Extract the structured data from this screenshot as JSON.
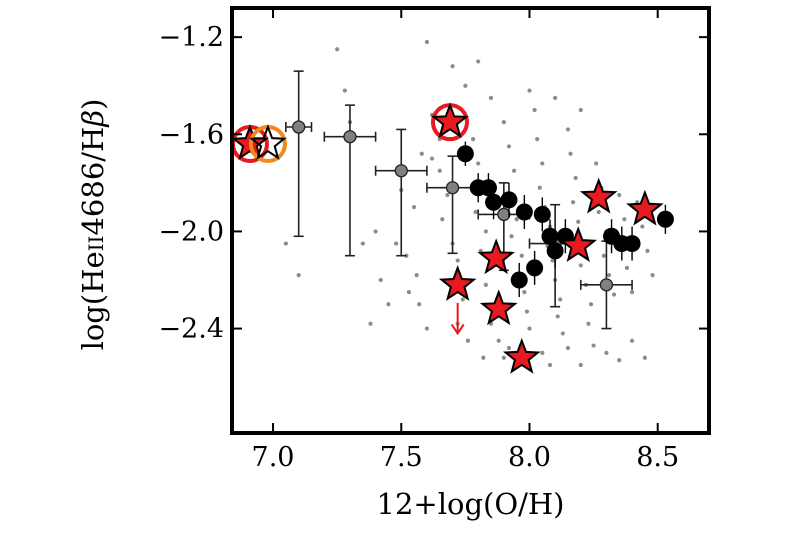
{
  "chart_data": {
    "type": "scatter",
    "xlabel": "12+log(O/H)",
    "ylabel_parts": [
      "log(He",
      "II",
      "4686/H",
      "β",
      ")"
    ],
    "xlim": [
      6.84,
      8.7
    ],
    "ylim": [
      -2.83,
      -1.08
    ],
    "xticks": [
      7.0,
      7.5,
      8.0,
      8.5
    ],
    "xtick_labels": [
      "7.0",
      "7.5",
      "8.0",
      "8.5"
    ],
    "yticks": [
      -1.2,
      -1.6,
      -2.0,
      -2.4
    ],
    "ytick_labels": [
      "−1.2",
      "−1.6",
      "−2.0",
      "−2.4"
    ],
    "colors": {
      "background_points": "#8c8c8c",
      "gray_markers": "#808080",
      "black_markers": "#000000",
      "stars": "#e8191f",
      "red_circle": "#e8191f",
      "orange_circle": "#f08a1a",
      "upper_limit_arrow": "#e8191f"
    },
    "series": [
      {
        "marker": "small-dot",
        "points": [
          [
            7.5,
            -1.83
          ],
          [
            7.55,
            -1.9
          ],
          [
            7.48,
            -2.05
          ],
          [
            7.52,
            -2.1
          ],
          [
            7.56,
            -2.18
          ],
          [
            7.53,
            -2.25
          ],
          [
            7.57,
            -2.3
          ],
          [
            7.6,
            -2.4
          ],
          [
            7.62,
            -1.7
          ],
          [
            7.65,
            -1.75
          ],
          [
            7.68,
            -1.85
          ],
          [
            7.66,
            -1.95
          ],
          [
            7.7,
            -2.05
          ],
          [
            7.72,
            -2.12
          ],
          [
            7.7,
            -2.2
          ],
          [
            7.74,
            -2.28
          ],
          [
            7.72,
            -2.38
          ],
          [
            7.76,
            -2.45
          ],
          [
            7.78,
            -1.62
          ],
          [
            7.8,
            -1.72
          ],
          [
            7.82,
            -1.8
          ],
          [
            7.79,
            -1.92
          ],
          [
            7.83,
            -2.0
          ],
          [
            7.81,
            -2.08
          ],
          [
            7.85,
            -2.15
          ],
          [
            7.83,
            -2.22
          ],
          [
            7.87,
            -2.3
          ],
          [
            7.85,
            -2.38
          ],
          [
            7.88,
            -2.45
          ],
          [
            7.9,
            -1.55
          ],
          [
            7.92,
            -1.65
          ],
          [
            7.94,
            -1.75
          ],
          [
            7.91,
            -1.85
          ],
          [
            7.95,
            -1.95
          ],
          [
            7.93,
            -2.02
          ],
          [
            7.97,
            -2.1
          ],
          [
            7.96,
            -2.18
          ],
          [
            7.98,
            -2.25
          ],
          [
            7.99,
            -2.33
          ],
          [
            8.0,
            -2.4
          ],
          [
            8.02,
            -1.5
          ],
          [
            8.03,
            -1.62
          ],
          [
            8.05,
            -1.72
          ],
          [
            8.04,
            -1.82
          ],
          [
            8.06,
            -1.9
          ],
          [
            8.08,
            -1.98
          ],
          [
            8.07,
            -2.06
          ],
          [
            8.09,
            -2.12
          ],
          [
            8.1,
            -2.2
          ],
          [
            8.12,
            -2.28
          ],
          [
            8.11,
            -2.35
          ],
          [
            8.13,
            -2.42
          ],
          [
            8.15,
            -1.58
          ],
          [
            8.16,
            -1.68
          ],
          [
            8.18,
            -1.78
          ],
          [
            8.17,
            -1.88
          ],
          [
            8.19,
            -1.96
          ],
          [
            8.21,
            -2.04
          ],
          [
            8.2,
            -2.14
          ],
          [
            8.22,
            -2.22
          ],
          [
            8.24,
            -2.3
          ],
          [
            8.23,
            -2.38
          ],
          [
            8.26,
            -1.72
          ],
          [
            8.28,
            -1.82
          ],
          [
            8.27,
            -1.92
          ],
          [
            8.3,
            -2.0
          ],
          [
            8.29,
            -2.1
          ],
          [
            8.31,
            -2.18
          ],
          [
            8.33,
            -2.26
          ],
          [
            8.35,
            -1.85
          ],
          [
            8.37,
            -1.95
          ],
          [
            8.36,
            -2.05
          ],
          [
            8.38,
            -2.15
          ],
          [
            8.4,
            -2.25
          ],
          [
            8.42,
            -1.88
          ],
          [
            8.44,
            -1.98
          ],
          [
            8.46,
            -2.08
          ],
          [
            8.48,
            -2.18
          ],
          [
            7.4,
            -2.0
          ],
          [
            7.42,
            -2.2
          ],
          [
            7.38,
            -2.38
          ],
          [
            7.45,
            -2.3
          ],
          [
            7.3,
            -1.55
          ],
          [
            7.28,
            -1.42
          ],
          [
            7.05,
            -2.05
          ],
          [
            7.1,
            -2.18
          ],
          [
            7.35,
            -2.05
          ],
          [
            7.25,
            -1.25
          ],
          [
            7.62,
            -1.52
          ],
          [
            7.75,
            -1.4
          ],
          [
            7.8,
            -1.3
          ],
          [
            7.6,
            -1.22
          ],
          [
            7.7,
            -1.32
          ],
          [
            7.82,
            -2.52
          ],
          [
            7.9,
            -2.52
          ],
          [
            8.05,
            -2.5
          ],
          [
            8.15,
            -2.48
          ],
          [
            8.2,
            -2.55
          ],
          [
            8.25,
            -2.47
          ],
          [
            8.3,
            -2.5
          ],
          [
            8.4,
            -2.45
          ],
          [
            8.45,
            -2.52
          ],
          [
            7.96,
            -2.55
          ],
          [
            8.08,
            -2.55
          ],
          [
            8.35,
            -2.53
          ],
          [
            7.92,
            -2.48
          ],
          [
            8.0,
            -1.42
          ],
          [
            8.1,
            -1.45
          ],
          [
            8.2,
            -1.5
          ],
          [
            7.85,
            -1.45
          ],
          [
            7.65,
            -1.62
          ],
          [
            7.58,
            -1.68
          ]
        ]
      },
      {
        "marker": "gray-circle-errorbars",
        "points": [
          {
            "x": 7.1,
            "y": -1.57,
            "xerr": 0.05,
            "yerr": [
              0.45,
              0.23
            ]
          },
          {
            "x": 7.3,
            "y": -1.61,
            "xerr": 0.1,
            "yerr": [
              0.49,
              0.13
            ]
          },
          {
            "x": 7.5,
            "y": -1.75,
            "xerr": 0.1,
            "yerr": [
              0.35,
              0.17
            ]
          },
          {
            "x": 7.7,
            "y": -1.82,
            "xerr": 0.1,
            "yerr": [
              0.27,
              0.13
            ]
          },
          {
            "x": 7.9,
            "y": -1.93,
            "xerr": 0.1,
            "yerr": [
              0.23,
              0.13
            ]
          },
          {
            "x": 8.1,
            "y": -2.05,
            "xerr": 0.1,
            "yerr": [
              0.26,
              0.16
            ]
          },
          {
            "x": 8.3,
            "y": -2.22,
            "xerr": 0.1,
            "yerr": [
              0.18,
              0.18
            ]
          }
        ]
      },
      {
        "marker": "black-circle-errorbars",
        "points": [
          {
            "x": 7.75,
            "y": -1.68,
            "yerr": 0.05
          },
          {
            "x": 7.8,
            "y": -1.82,
            "yerr": 0.06
          },
          {
            "x": 7.84,
            "y": -1.82,
            "yerr": 0.06
          },
          {
            "x": 7.86,
            "y": -1.88,
            "yerr": 0.07
          },
          {
            "x": 7.92,
            "y": -1.87,
            "yerr": 0.07
          },
          {
            "x": 7.96,
            "y": -2.2,
            "yerr": 0.07
          },
          {
            "x": 7.98,
            "y": -1.92,
            "yerr": 0.07
          },
          {
            "x": 8.02,
            "y": -2.15,
            "yerr": 0.07
          },
          {
            "x": 8.05,
            "y": -1.93,
            "yerr": 0.07
          },
          {
            "x": 8.08,
            "y": -2.02,
            "yerr": 0.07
          },
          {
            "x": 8.1,
            "y": -2.08,
            "yerr": 0.07
          },
          {
            "x": 8.14,
            "y": -2.02,
            "yerr": 0.07
          },
          {
            "x": 8.32,
            "y": -2.02,
            "yerr": 0.07
          },
          {
            "x": 8.36,
            "y": -2.05,
            "yerr": 0.07
          },
          {
            "x": 8.4,
            "y": -2.05,
            "yerr": 0.07
          },
          {
            "x": 8.53,
            "y": -1.95,
            "yerr": 0.06
          }
        ]
      },
      {
        "marker": "red-star",
        "points": [
          {
            "x": 6.91,
            "y": -1.64,
            "circle": "red"
          },
          {
            "x": 6.98,
            "y": -1.64,
            "circle": "orange",
            "fill": "none"
          },
          {
            "x": 7.69,
            "y": -1.55,
            "circle": "red"
          },
          {
            "x": 7.72,
            "y": -2.22,
            "upper_limit": true
          },
          {
            "x": 7.87,
            "y": -2.11
          },
          {
            "x": 7.88,
            "y": -2.32
          },
          {
            "x": 7.97,
            "y": -2.52
          },
          {
            "x": 8.19,
            "y": -2.06
          },
          {
            "x": 8.27,
            "y": -1.86
          },
          {
            "x": 8.45,
            "y": -1.91
          }
        ]
      }
    ]
  }
}
